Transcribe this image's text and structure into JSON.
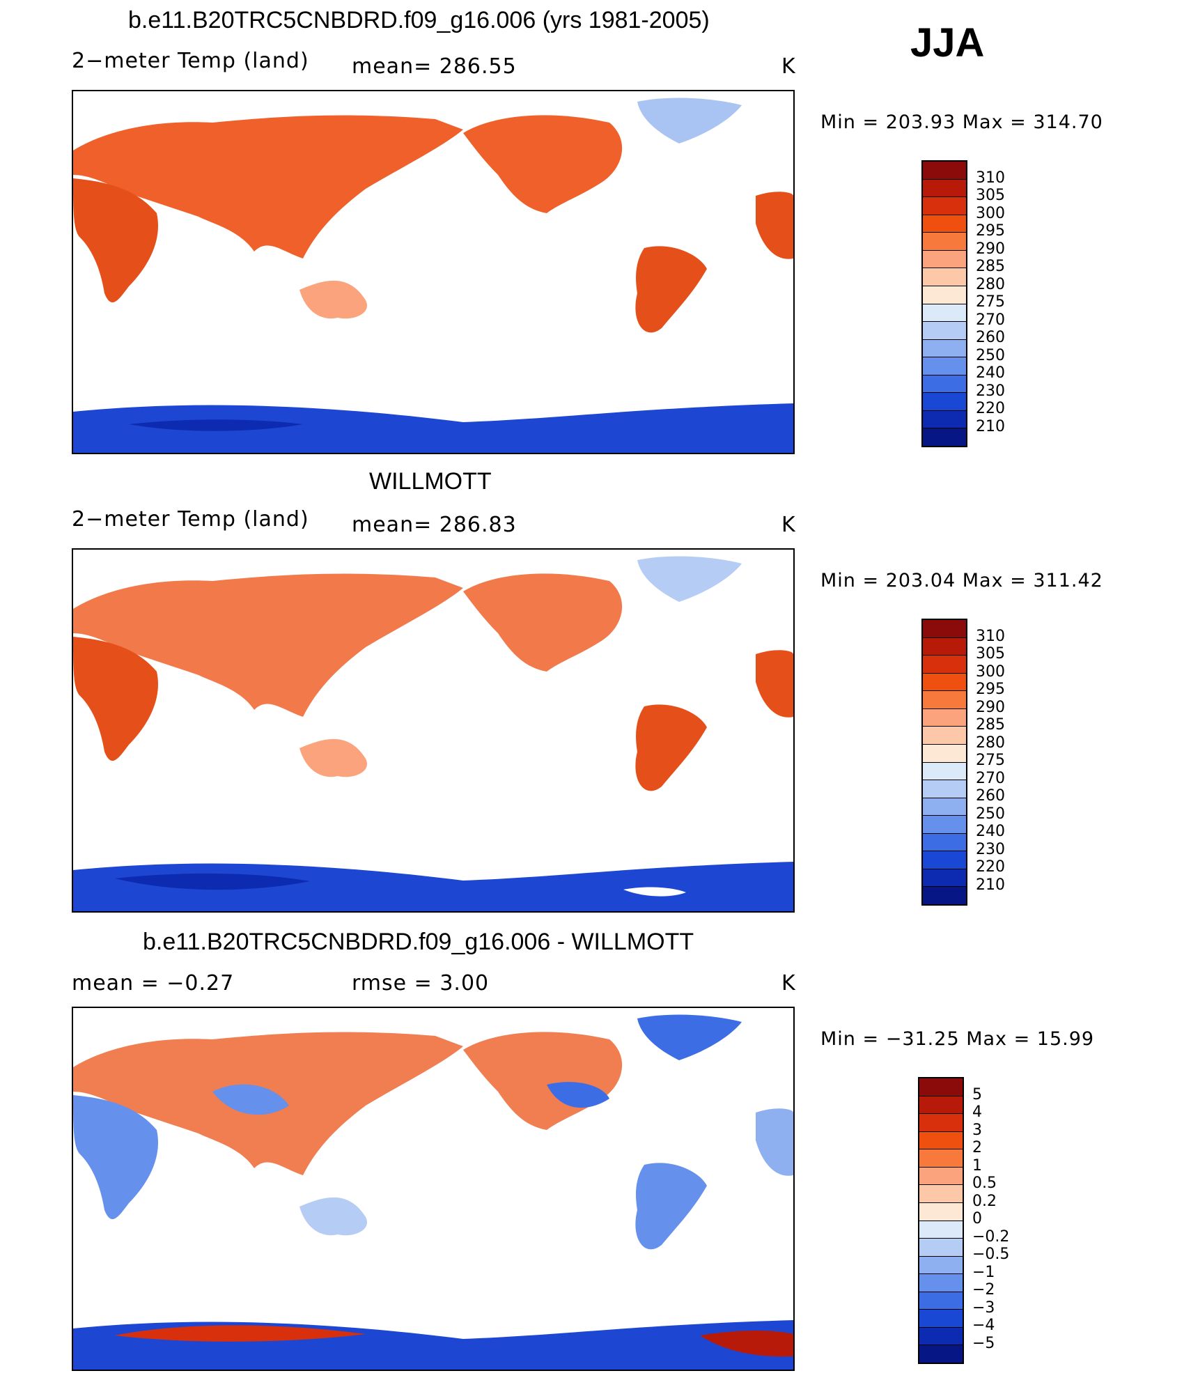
{
  "season": "JJA",
  "panels": [
    {
      "title": "b.e11.B20TRC5CNBDRD.f09_g16.006 (yrs 1981-2005)",
      "left_label": "2−meter Temp (land)",
      "center_label": "mean=  286.55",
      "units": "K",
      "minmax": "Min  =  203.93  Max  =  314.70",
      "colorbar": {
        "labels": [
          "310",
          "305",
          "300",
          "295",
          "290",
          "285",
          "280",
          "275",
          "270",
          "260",
          "250",
          "240",
          "230",
          "220",
          "210"
        ],
        "colors": [
          "#8b0a0a",
          "#b81a0a",
          "#d8300c",
          "#f0500f",
          "#f77a3c",
          "#fba37c",
          "#fdc8a8",
          "#fde8d6",
          "#dbe9f8",
          "#b5cdf4",
          "#8eb0f0",
          "#6590ec",
          "#3c6de4",
          "#1948d4",
          "#0d2bb0",
          "#061685"
        ]
      }
    },
    {
      "title": "WILLMOTT",
      "left_label": "2−meter Temp (land)",
      "center_label": "mean=  286.83",
      "units": "K",
      "minmax": "Min  =  203.04  Max  =  311.42",
      "colorbar": {
        "labels": [
          "310",
          "305",
          "300",
          "295",
          "290",
          "285",
          "280",
          "275",
          "270",
          "260",
          "250",
          "240",
          "230",
          "220",
          "210"
        ],
        "colors": [
          "#8b0a0a",
          "#b81a0a",
          "#d8300c",
          "#f0500f",
          "#f77a3c",
          "#fba37c",
          "#fdc8a8",
          "#fde8d6",
          "#dbe9f8",
          "#b5cdf4",
          "#8eb0f0",
          "#6590ec",
          "#3c6de4",
          "#1948d4",
          "#0d2bb0",
          "#061685"
        ]
      }
    },
    {
      "title": "b.e11.B20TRC5CNBDRD.f09_g16.006 - WILLMOTT",
      "left_label": "mean  =    −0.27",
      "center_label": "rmse  =      3.00",
      "units": "K",
      "minmax": "Min  =  −31.25  Max  =     15.99",
      "colorbar": {
        "labels": [
          "5",
          "4",
          "3",
          "2",
          "1",
          "0.5",
          "0.2",
          "0",
          "−0.2",
          "−0.5",
          "−1",
          "−2",
          "−3",
          "−4",
          "−5"
        ],
        "colors": [
          "#8b0a0a",
          "#b81a0a",
          "#d8300c",
          "#f0500f",
          "#f77a3c",
          "#fba37c",
          "#fdc8a8",
          "#fde8d6",
          "#dbe9f8",
          "#b5cdf4",
          "#8eb0f0",
          "#6590ec",
          "#3c6de4",
          "#1948d4",
          "#0d2bb0",
          "#061685"
        ]
      }
    }
  ]
}
